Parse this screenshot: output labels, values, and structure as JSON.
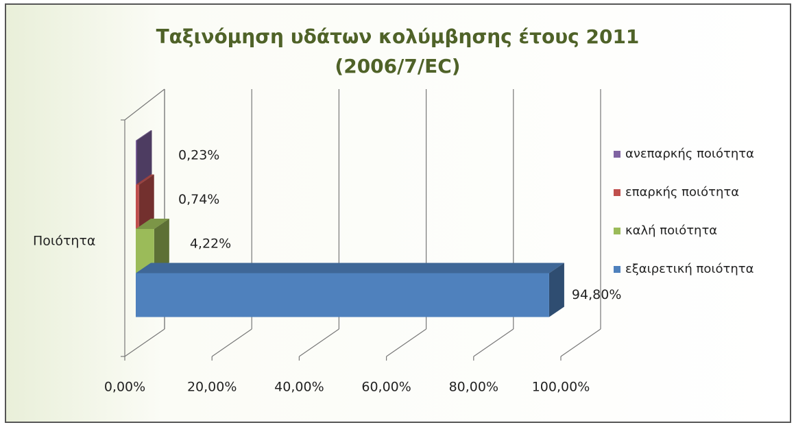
{
  "chart_data": {
    "type": "bar3d_horizontal",
    "title": [
      "Ταξινόμηση  υδάτων κολύμβησης έτους 2011",
      "(2006/7/EC)"
    ],
    "categories": [
      "Ποιότητα"
    ],
    "series": [
      {
        "name": "ανεπαρκής ποιότητα",
        "color": "#8064a2",
        "values": [
          0.23
        ],
        "value_labels": [
          "0,23%"
        ]
      },
      {
        "name": "επαρκής ποιότητα",
        "color": "#c0504d",
        "values": [
          0.74
        ],
        "value_labels": [
          "0,74%"
        ]
      },
      {
        "name": "καλή ποιότητα",
        "color": "#9bbb59",
        "values": [
          4.22
        ],
        "value_labels": [
          "4,22%"
        ]
      },
      {
        "name": "εξαιρετική ποιότητα",
        "color": "#4f81bd",
        "values": [
          94.8
        ],
        "value_labels": [
          "94,80%"
        ]
      }
    ],
    "xlim": [
      0,
      100
    ],
    "xticks": [
      {
        "value": 0,
        "label": "0,00%"
      },
      {
        "value": 20,
        "label": "20,00%"
      },
      {
        "value": 40,
        "label": "40,00%"
      },
      {
        "value": 60,
        "label": "60,00%"
      },
      {
        "value": 80,
        "label": "80,00%"
      },
      {
        "value": 100,
        "label": "100,00%"
      }
    ],
    "grid": true,
    "legend": "right"
  }
}
